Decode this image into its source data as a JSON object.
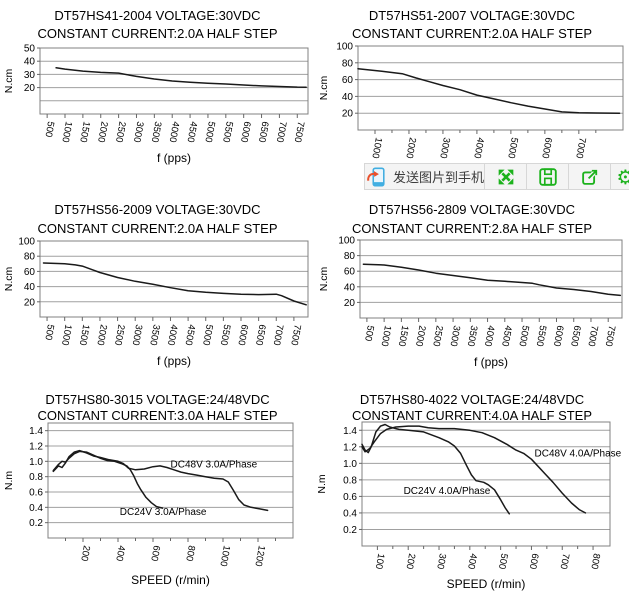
{
  "toolbar": {
    "send_label": "发送图片到手机",
    "settings_glyph": "⚙",
    "icon_color": "#1cb21c",
    "phone_blue": "#41aee1",
    "arrow_red": "#e8512e",
    "background": "#f4f4f4",
    "border": "#d7d7d7",
    "buttons": [
      "send-image-to-phone",
      "fullscreen",
      "save",
      "share",
      "settings"
    ]
  },
  "chart_data": [
    {
      "type": "line",
      "title_line1": "DT57HS41-2004 VOLTAGE:30VDC",
      "title_line2": "CONSTANT CURRENT:2.0A HALF STEP",
      "xlabel": "f (pps)",
      "ylabel": "N.cm",
      "xlim": [
        300,
        7800
      ],
      "ylim": [
        0,
        50
      ],
      "ydecimals": 0,
      "xticks": [
        500,
        1000,
        1500,
        2000,
        2500,
        3000,
        3500,
        4000,
        4500,
        5000,
        5500,
        6000,
        6500,
        7000,
        7500
      ],
      "xminor": [],
      "yticks": [
        20,
        30,
        40,
        50
      ],
      "ygrid": [
        10,
        20,
        30,
        40
      ],
      "grid": true,
      "legend_position": "none",
      "series": [
        {
          "name": "torque",
          "points": [
            [
              750,
              35
            ],
            [
              1000,
              34
            ],
            [
              1500,
              32.5
            ],
            [
              2000,
              31.5
            ],
            [
              2500,
              31
            ],
            [
              2800,
              29.5
            ],
            [
              3000,
              28.5
            ],
            [
              3500,
              26.5
            ],
            [
              4000,
              25
            ],
            [
              4500,
              24
            ],
            [
              5000,
              23.3
            ],
            [
              5500,
              22.7
            ],
            [
              6000,
              22
            ],
            [
              6500,
              21.3
            ],
            [
              7000,
              20.8
            ],
            [
              7500,
              20.4
            ],
            [
              7750,
              20.3
            ]
          ]
        }
      ],
      "annotations": []
    },
    {
      "type": "line",
      "title_line1": "DT57HS51-2007 VOLTAGE:30VDC",
      "title_line2": "CONSTANT CURRENT:2.0A HALF STEP",
      "xlabel": "f (pps)",
      "ylabel": "N.cm",
      "xlim": [
        500,
        8300
      ],
      "ylim": [
        0,
        100
      ],
      "ydecimals": 0,
      "xticks": [
        1000,
        2000,
        3000,
        4000,
        5000,
        6000,
        7000
      ],
      "xminor": [
        1500,
        2500,
        3500,
        4500,
        5500,
        6500,
        7500
      ],
      "yticks": [
        20,
        40,
        60,
        80,
        100
      ],
      "ygrid": [
        20,
        40,
        60,
        80
      ],
      "grid": true,
      "legend_position": "none",
      "series": [
        {
          "name": "torque",
          "points": [
            [
              500,
              73
            ],
            [
              1200,
              70
            ],
            [
              1800,
              67
            ],
            [
              2200,
              62
            ],
            [
              2600,
              57.5
            ],
            [
              3000,
              53
            ],
            [
              3500,
              48
            ],
            [
              4000,
              41.5
            ],
            [
              4500,
              37
            ],
            [
              5000,
              32.5
            ],
            [
              5500,
              28.5
            ],
            [
              6000,
              25
            ],
            [
              6500,
              21.5
            ],
            [
              7000,
              20.5
            ],
            [
              7500,
              20.2
            ],
            [
              8200,
              20
            ]
          ]
        }
      ],
      "annotations": []
    },
    {
      "type": "line",
      "title_line1": "DT57HS56-2009 VOLTAGE:30VDC",
      "title_line2": "CONSTANT CURRENT:2.0A HALF STEP",
      "xlabel": "f (pps)",
      "ylabel": "N.cm",
      "xlim": [
        300,
        7900
      ],
      "ylim": [
        0,
        100
      ],
      "ydecimals": 0,
      "xticks": [
        500,
        1000,
        1500,
        2000,
        2500,
        3000,
        3500,
        4000,
        4500,
        5000,
        5500,
        6000,
        6500,
        7000,
        7500
      ],
      "xminor": [],
      "yticks": [
        20,
        40,
        60,
        80,
        100
      ],
      "ygrid": [
        20,
        40,
        60,
        80
      ],
      "grid": true,
      "legend_position": "none",
      "series": [
        {
          "name": "torque",
          "points": [
            [
              400,
              71
            ],
            [
              1000,
              70
            ],
            [
              1300,
              68.5
            ],
            [
              1500,
              67
            ],
            [
              1800,
              62
            ],
            [
              2000,
              58.5
            ],
            [
              2500,
              52
            ],
            [
              3000,
              47
            ],
            [
              3500,
              43
            ],
            [
              4000,
              38.5
            ],
            [
              4500,
              34.5
            ],
            [
              5000,
              32.5
            ],
            [
              5500,
              31
            ],
            [
              6000,
              30
            ],
            [
              6500,
              29.5
            ],
            [
              7000,
              30
            ],
            [
              7150,
              28
            ],
            [
              7500,
              21
            ],
            [
              7850,
              16
            ]
          ]
        }
      ],
      "annotations": []
    },
    {
      "type": "line",
      "title_line1": "DT57HS56-2809 VOLTAGE:30VDC",
      "title_line2": "CONSTANT CURRENT:2.8A HALF STEP",
      "xlabel": "f (pps)",
      "ylabel": "N.cm",
      "xlim": [
        300,
        7900
      ],
      "ylim": [
        0,
        100
      ],
      "ydecimals": 0,
      "xticks": [
        500,
        1000,
        1500,
        2000,
        2500,
        3000,
        3500,
        4000,
        4500,
        5000,
        5500,
        6000,
        6500,
        7000,
        7500
      ],
      "xminor": [],
      "yticks": [
        20,
        40,
        60,
        80,
        100
      ],
      "ygrid": [
        20,
        40,
        60,
        80
      ],
      "grid": true,
      "legend_position": "none",
      "series": [
        {
          "name": "torque",
          "points": [
            [
              400,
              69
            ],
            [
              1000,
              68
            ],
            [
              1500,
              65
            ],
            [
              2000,
              61.5
            ],
            [
              2500,
              57.5
            ],
            [
              3000,
              54.5
            ],
            [
              3500,
              51.5
            ],
            [
              4000,
              48.5
            ],
            [
              4500,
              47
            ],
            [
              5000,
              45.5
            ],
            [
              5300,
              44.5
            ],
            [
              5500,
              42.5
            ],
            [
              6000,
              38.5
            ],
            [
              6500,
              36.5
            ],
            [
              7000,
              34
            ],
            [
              7500,
              30.5
            ],
            [
              7850,
              29
            ]
          ]
        }
      ],
      "annotations": []
    },
    {
      "type": "line",
      "title_line1": "DT57HS80-3015 VOLTAGE:24/48VDC",
      "title_line2": "CONSTANT CURRENT:3.0A HALF STEP",
      "xlabel": "SPEED (r/min)",
      "ylabel": "N.m",
      "xlim": [
        0,
        1400
      ],
      "ylim": [
        0,
        1.5
      ],
      "ydecimals": 1,
      "xticks": [
        200,
        400,
        600,
        800,
        1000,
        1200
      ],
      "xminor": [
        100,
        300,
        500,
        700,
        900,
        1100,
        1300
      ],
      "yticks": [
        0.2,
        0.4,
        0.6,
        0.8,
        1.0,
        1.2,
        1.4
      ],
      "ygrid": [
        0.2,
        0.4,
        0.6,
        0.8,
        1.0,
        1.2,
        1.4
      ],
      "grid": true,
      "legend_position": "inline",
      "series": [
        {
          "name": "DC48V 3.0A/Phase",
          "points": [
            [
              30,
              0.87
            ],
            [
              60,
              0.94
            ],
            [
              80,
              0.92
            ],
            [
              100,
              0.98
            ],
            [
              120,
              1.06
            ],
            [
              150,
              1.12
            ],
            [
              180,
              1.14
            ],
            [
              220,
              1.11
            ],
            [
              260,
              1.07
            ],
            [
              300,
              1.05
            ],
            [
              350,
              1.02
            ],
            [
              400,
              1.0
            ],
            [
              430,
              0.97
            ],
            [
              460,
              0.91
            ],
            [
              500,
              0.89
            ],
            [
              550,
              0.9
            ],
            [
              600,
              0.93
            ],
            [
              640,
              0.94
            ],
            [
              680,
              0.92
            ],
            [
              720,
              0.89
            ],
            [
              760,
              0.86
            ],
            [
              800,
              0.84
            ],
            [
              850,
              0.82
            ],
            [
              900,
              0.8
            ],
            [
              950,
              0.78
            ],
            [
              1000,
              0.77
            ],
            [
              1030,
              0.73
            ],
            [
              1060,
              0.62
            ],
            [
              1090,
              0.5
            ],
            [
              1120,
              0.43
            ],
            [
              1160,
              0.4
            ],
            [
              1210,
              0.38
            ],
            [
              1255,
              0.36
            ]
          ]
        },
        {
          "name": "DC24V 3.0A/Phase",
          "points": [
            [
              30,
              0.88
            ],
            [
              60,
              0.96
            ],
            [
              80,
              1.0
            ],
            [
              100,
              0.99
            ],
            [
              120,
              1.04
            ],
            [
              150,
              1.1
            ],
            [
              180,
              1.13
            ],
            [
              220,
              1.12
            ],
            [
              260,
              1.08
            ],
            [
              300,
              1.04
            ],
            [
              340,
              1.01
            ],
            [
              380,
              1.0
            ],
            [
              420,
              0.97
            ],
            [
              450,
              0.94
            ],
            [
              470,
              0.89
            ],
            [
              490,
              0.81
            ],
            [
              510,
              0.71
            ],
            [
              530,
              0.63
            ],
            [
              560,
              0.53
            ],
            [
              590,
              0.46
            ],
            [
              620,
              0.41
            ],
            [
              655,
              0.39
            ]
          ]
        }
      ],
      "annotations": [
        {
          "text": "DC48V 3.0A/Phase",
          "x": 700,
          "y": 0.92
        },
        {
          "text": "DC24V 3.0A/Phase",
          "x": 410,
          "y": 0.3
        }
      ]
    },
    {
      "type": "line",
      "title_line1": "DT57HS80-4022 VOLTAGE:24/48VDC",
      "title_line2": "CONSTANT CURRENT:4.0A HALF STEP",
      "xlabel": "SPEED (r/min)",
      "ylabel": "N.m",
      "xlim": [
        50,
        855
      ],
      "ylim": [
        0,
        1.5
      ],
      "ydecimals": 1,
      "xticks": [
        100,
        200,
        300,
        400,
        500,
        600,
        700,
        800
      ],
      "xminor": [
        150,
        250,
        350,
        450,
        550,
        650,
        750
      ],
      "yticks": [
        0.2,
        0.4,
        0.6,
        0.8,
        1.0,
        1.2,
        1.4
      ],
      "ygrid": [
        0.2,
        0.4,
        0.6,
        0.8,
        1.0,
        1.2,
        1.4
      ],
      "grid": true,
      "legend_position": "inline",
      "series": [
        {
          "name": "DC48V 4.0A/Phase",
          "points": [
            [
              50,
              1.2
            ],
            [
              60,
              1.14
            ],
            [
              75,
              1.18
            ],
            [
              90,
              1.26
            ],
            [
              110,
              1.36
            ],
            [
              130,
              1.41
            ],
            [
              160,
              1.44
            ],
            [
              200,
              1.45
            ],
            [
              235,
              1.45
            ],
            [
              265,
              1.43
            ],
            [
              300,
              1.42
            ],
            [
              350,
              1.42
            ],
            [
              400,
              1.4
            ],
            [
              440,
              1.37
            ],
            [
              480,
              1.31
            ],
            [
              520,
              1.23
            ],
            [
              550,
              1.16
            ],
            [
              575,
              1.12
            ],
            [
              600,
              1.05
            ],
            [
              620,
              0.97
            ],
            [
              645,
              0.87
            ],
            [
              670,
              0.77
            ],
            [
              700,
              0.64
            ],
            [
              730,
              0.52
            ],
            [
              755,
              0.44
            ],
            [
              775,
              0.4
            ]
          ]
        },
        {
          "name": "DC24V 4.0A/Phase",
          "points": [
            [
              50,
              1.23
            ],
            [
              60,
              1.16
            ],
            [
              70,
              1.13
            ],
            [
              80,
              1.2
            ],
            [
              95,
              1.38
            ],
            [
              110,
              1.45
            ],
            [
              125,
              1.47
            ],
            [
              140,
              1.44
            ],
            [
              170,
              1.41
            ],
            [
              200,
              1.4
            ],
            [
              250,
              1.38
            ],
            [
              300,
              1.31
            ],
            [
              330,
              1.26
            ],
            [
              350,
              1.21
            ],
            [
              370,
              1.12
            ],
            [
              390,
              0.97
            ],
            [
              405,
              0.86
            ],
            [
              420,
              0.79
            ],
            [
              445,
              0.77
            ],
            [
              460,
              0.74
            ],
            [
              480,
              0.68
            ],
            [
              500,
              0.56
            ],
            [
              515,
              0.46
            ],
            [
              528,
              0.39
            ]
          ]
        }
      ],
      "annotations": [
        {
          "text": "DC24V 4.0A/Phase",
          "x": 185,
          "y": 0.63
        },
        {
          "text": "DC48V 4.0A/Phase",
          "x": 610,
          "y": 1.08
        }
      ]
    }
  ],
  "style": {
    "grid_color": "#a0a0a0",
    "border_color": "#808080",
    "curve_color": "#1a1a1a",
    "tick_color": "#666666",
    "text_color": "#000000"
  }
}
